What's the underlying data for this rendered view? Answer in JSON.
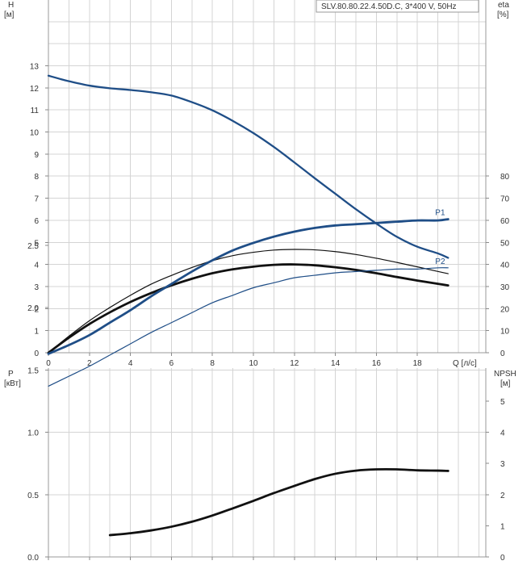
{
  "chart_data": [
    {
      "type": "line",
      "title": "SLV.80.80.22.4.50D.C, 3*400 V, 50Hz",
      "xlabel": "Q [л/с]",
      "ylabel": "H",
      "ylabel_unit": "[м]",
      "y2label": "eta",
      "y2label_unit": "[%]",
      "xlim": [
        0,
        20
      ],
      "ylim": [
        0,
        16
      ],
      "y2lim": [
        0,
        160
      ],
      "x_ticks": [
        0,
        2,
        4,
        6,
        8,
        10,
        12,
        14,
        16,
        18
      ],
      "x_tick_labels": [
        "0",
        "2",
        "4",
        "6",
        "8",
        "10",
        "12",
        "14",
        "16",
        "18"
      ],
      "y_ticks": [
        0,
        1,
        2,
        3,
        4,
        5,
        6,
        7,
        8,
        9,
        10,
        11,
        12,
        13
      ],
      "y_tick_labels": [
        "0",
        "1",
        "2",
        "3",
        "4",
        "5",
        "6",
        "7",
        "8",
        "9",
        "10",
        "11",
        "12",
        "13"
      ],
      "y2_ticks": [
        0,
        10,
        20,
        30,
        40,
        50,
        60,
        70,
        80
      ],
      "y2_tick_labels": [
        "0",
        "10",
        "20",
        "30",
        "40",
        "50",
        "60",
        "70",
        "80"
      ],
      "grid": true,
      "series": [
        {
          "axis": "left",
          "color": "#1f4e87",
          "stroke": "medium",
          "points": [
            [
              0,
              12.55
            ],
            [
              0.5,
              12.42
            ],
            [
              1,
              12.3
            ],
            [
              2,
              12.1
            ],
            [
              3,
              11.98
            ],
            [
              4,
              11.9
            ],
            [
              5,
              11.8
            ],
            [
              6,
              11.65
            ],
            [
              7,
              11.35
            ],
            [
              8,
              10.98
            ],
            [
              9,
              10.5
            ],
            [
              10,
              9.95
            ],
            [
              11,
              9.32
            ],
            [
              12,
              8.62
            ],
            [
              13,
              7.9
            ],
            [
              14,
              7.2
            ],
            [
              15,
              6.5
            ],
            [
              16,
              5.85
            ],
            [
              17,
              5.25
            ],
            [
              18,
              4.8
            ],
            [
              19,
              4.5
            ],
            [
              19.5,
              4.3
            ]
          ]
        },
        {
          "axis": "right",
          "color": "#111111",
          "stroke": "thin",
          "points": [
            [
              0,
              0
            ],
            [
              1,
              7.5
            ],
            [
              2,
              14.5
            ],
            [
              3,
              20.5
            ],
            [
              4,
              26
            ],
            [
              5,
              31
            ],
            [
              6,
              35
            ],
            [
              7,
              38.6
            ],
            [
              8,
              41.7
            ],
            [
              9,
              44
            ],
            [
              10,
              45.5
            ],
            [
              11,
              46.5
            ],
            [
              12,
              46.8
            ],
            [
              13,
              46.6
            ],
            [
              14,
              45.8
            ],
            [
              15,
              44.5
            ],
            [
              16,
              42.8
            ],
            [
              17,
              40.9
            ],
            [
              18,
              38.9
            ],
            [
              19,
              36.8
            ],
            [
              19.5,
              35.8
            ]
          ]
        },
        {
          "axis": "right",
          "color": "#111111",
          "stroke": "thick",
          "points": [
            [
              0,
              0
            ],
            [
              1,
              6.8
            ],
            [
              2,
              13
            ],
            [
              3,
              18.3
            ],
            [
              4,
              23
            ],
            [
              5,
              27
            ],
            [
              6,
              30.5
            ],
            [
              7,
              33.5
            ],
            [
              8,
              36
            ],
            [
              9,
              37.8
            ],
            [
              10,
              39
            ],
            [
              11,
              39.8
            ],
            [
              12,
              40
            ],
            [
              13,
              39.6
            ],
            [
              14,
              38.7
            ],
            [
              15,
              37.5
            ],
            [
              16,
              36
            ],
            [
              17,
              34.3
            ],
            [
              18,
              32.7
            ],
            [
              19,
              31.2
            ],
            [
              19.5,
              30.5
            ]
          ]
        }
      ]
    },
    {
      "type": "line",
      "ylabel": "P",
      "ylabel_unit": "[кВт]",
      "y2label": "NPSH",
      "y2label_unit": "[м]",
      "xlim": [
        0,
        20
      ],
      "ylim": [
        0,
        3.0
      ],
      "y2lim": [
        0,
        6
      ],
      "x_ticks": [
        0,
        2,
        4,
        6,
        8,
        10,
        12,
        14,
        16,
        18
      ],
      "y_ticks": [
        0,
        0.5,
        1.0,
        1.5,
        2.0,
        2.5
      ],
      "y_tick_labels": [
        "0.0",
        "0.5",
        "1.0",
        "1.5",
        "2.0",
        "2.5"
      ],
      "y2_ticks": [
        0,
        1,
        2,
        3,
        4,
        5
      ],
      "y2_tick_labels": [
        "0",
        "1",
        "2",
        "3",
        "4",
        "5"
      ],
      "grid": true,
      "series": [
        {
          "name": "P1",
          "axis": "left",
          "color": "#1f4e87",
          "stroke": "thick",
          "points": [
            [
              0,
              1.63
            ],
            [
              1,
              1.7
            ],
            [
              2,
              1.78
            ],
            [
              3,
              1.88
            ],
            [
              4,
              1.98
            ],
            [
              5,
              2.09
            ],
            [
              6,
              2.19
            ],
            [
              7,
              2.29
            ],
            [
              8,
              2.38
            ],
            [
              9,
              2.46
            ],
            [
              10,
              2.52
            ],
            [
              11,
              2.57
            ],
            [
              12,
              2.61
            ],
            [
              13,
              2.64
            ],
            [
              14,
              2.66
            ],
            [
              15,
              2.67
            ],
            [
              16,
              2.68
            ],
            [
              17,
              2.69
            ],
            [
              18,
              2.7
            ],
            [
              19,
              2.7
            ],
            [
              19.5,
              2.71
            ]
          ]
        },
        {
          "name": "P2",
          "axis": "left",
          "color": "#1f4e87",
          "stroke": "thin",
          "points": [
            [
              0,
              1.37
            ],
            [
              1,
              1.45
            ],
            [
              2,
              1.53
            ],
            [
              3,
              1.62
            ],
            [
              4,
              1.71
            ],
            [
              5,
              1.8
            ],
            [
              6,
              1.88
            ],
            [
              7,
              1.96
            ],
            [
              8,
              2.04
            ],
            [
              9,
              2.1
            ],
            [
              10,
              2.16
            ],
            [
              11,
              2.2
            ],
            [
              12,
              2.24
            ],
            [
              13,
              2.26
            ],
            [
              14,
              2.28
            ],
            [
              15,
              2.29
            ],
            [
              16,
              2.3
            ],
            [
              17,
              2.31
            ],
            [
              18,
              2.31
            ],
            [
              19,
              2.32
            ],
            [
              19.5,
              2.32
            ]
          ]
        },
        {
          "axis": "right",
          "color": "#111111",
          "stroke": "thick",
          "points": [
            [
              3,
              0.7
            ],
            [
              4,
              0.76
            ],
            [
              5,
              0.85
            ],
            [
              6,
              0.97
            ],
            [
              7,
              1.13
            ],
            [
              8,
              1.33
            ],
            [
              9,
              1.56
            ],
            [
              10,
              1.8
            ],
            [
              11,
              2.05
            ],
            [
              12,
              2.28
            ],
            [
              13,
              2.5
            ],
            [
              14,
              2.67
            ],
            [
              15,
              2.77
            ],
            [
              16,
              2.81
            ],
            [
              17,
              2.81
            ],
            [
              18,
              2.78
            ],
            [
              19,
              2.77
            ],
            [
              19.5,
              2.76
            ]
          ]
        }
      ]
    }
  ]
}
